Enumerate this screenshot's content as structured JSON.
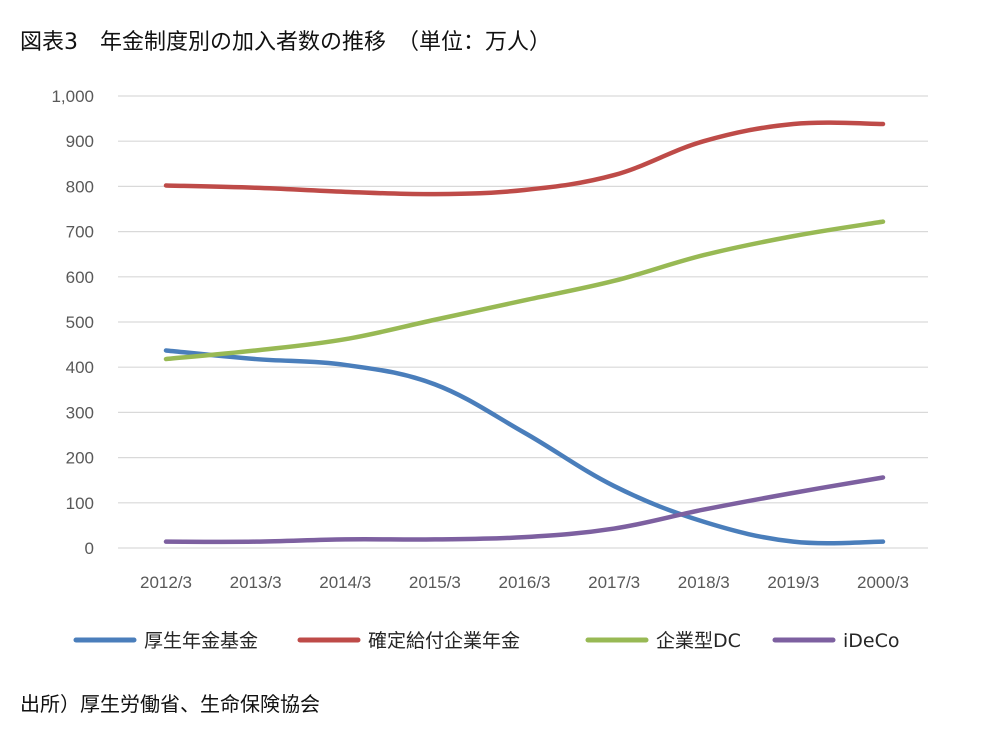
{
  "title": "図表3　年金制度別の加入者数の推移　（単位：万人）",
  "source": "出所）厚生労働省、生命保険協会",
  "chart_data": {
    "type": "line",
    "categories": [
      "2012/3",
      "2013/3",
      "2014/3",
      "2015/3",
      "2016/3",
      "2017/3",
      "2018/3",
      "2019/3",
      "2000/3"
    ],
    "ylim": [
      0,
      1000
    ],
    "yticks": [
      0,
      100,
      200,
      300,
      400,
      500,
      600,
      700,
      800,
      900,
      1000
    ],
    "ytick_labels": [
      "0",
      "100",
      "200",
      "300",
      "400",
      "500",
      "600",
      "700",
      "800",
      "900",
      "1,000"
    ],
    "grid": "horizontal",
    "legend": "bottom",
    "series": [
      {
        "name": "厚生年金基金",
        "color": "#4A7EBB",
        "values": [
          437,
          418,
          405,
          362,
          255,
          137,
          58,
          14,
          14
        ]
      },
      {
        "name": "確定給付企業年金",
        "color": "#BE4B48",
        "values": [
          802,
          797,
          788,
          783,
          792,
          825,
          900,
          938,
          938
        ]
      },
      {
        "name": "企業型DC",
        "color": "#98B954",
        "values": [
          418,
          437,
          462,
          505,
          548,
          591,
          648,
          690,
          722
        ]
      },
      {
        "name": "iDeCo",
        "color": "#7D60A0",
        "values": [
          14,
          14,
          19,
          19,
          24,
          43,
          85,
          122,
          156
        ]
      }
    ]
  }
}
